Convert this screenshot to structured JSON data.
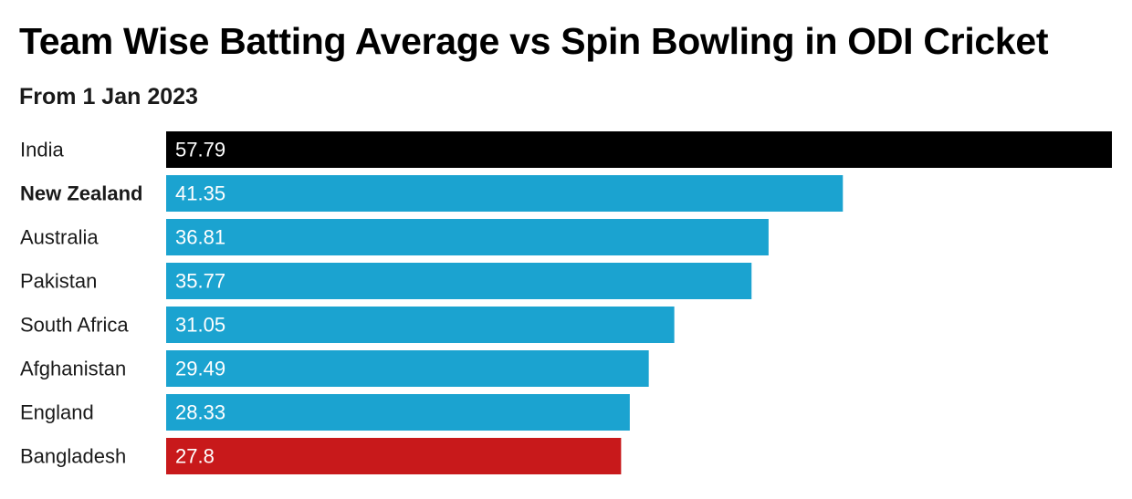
{
  "chart_data": {
    "type": "bar",
    "orientation": "horizontal",
    "title": "Team Wise Batting Average vs Spin Bowling in ODI Cricket",
    "subtitle": "From 1 Jan 2023",
    "categories": [
      "India",
      "New Zealand",
      "Australia",
      "Pakistan",
      "South Africa",
      "Afghanistan",
      "England",
      "Bangladesh"
    ],
    "values": [
      57.79,
      41.35,
      36.81,
      35.77,
      31.05,
      29.49,
      28.33,
      27.8
    ],
    "value_labels": [
      "57.79",
      "41.35",
      "36.81",
      "35.77",
      "31.05",
      "29.49",
      "28.33",
      "27.8"
    ],
    "bar_colors": [
      "#000000",
      "#1ba3d0",
      "#1ba3d0",
      "#1ba3d0",
      "#1ba3d0",
      "#1ba3d0",
      "#1ba3d0",
      "#c8191b"
    ],
    "highlighted_category": "New Zealand",
    "xlim": [
      0,
      57.79
    ],
    "grid": false,
    "legend": "none"
  }
}
